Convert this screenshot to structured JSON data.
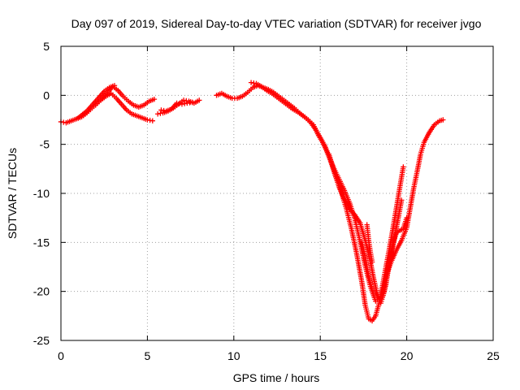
{
  "chart_data": {
    "type": "scatter",
    "title": "Day 097 of 2019, Sidereal Day-to-day VTEC variation (SDTVAR) for receiver jvgo",
    "xlabel": "GPS time / hours",
    "ylabel": "SDTVAR / TECUs",
    "xlim": [
      0,
      25
    ],
    "ylim": [
      -25,
      5
    ],
    "xticks": [
      "0",
      "5",
      "10",
      "15",
      "20",
      "25"
    ],
    "yticks": [
      "5",
      "0",
      "-5",
      "-10",
      "-15",
      "-20",
      "-25"
    ],
    "grid": true,
    "marker": "plus",
    "color": "#ff0000",
    "series": [
      {
        "points": [
          [
            0.0,
            -2.7
          ],
          [
            0.3,
            -2.8
          ],
          [
            0.6,
            -2.6
          ],
          [
            0.9,
            -2.4
          ],
          [
            1.2,
            -2.2
          ],
          [
            1.5,
            -1.8
          ],
          [
            1.8,
            -1.3
          ],
          [
            2.1,
            -0.8
          ],
          [
            2.4,
            -0.3
          ],
          [
            2.7,
            0.3
          ],
          [
            3.0,
            0.9
          ],
          [
            3.3,
            0.5
          ],
          [
            3.6,
            -0.1
          ],
          [
            3.9,
            -0.6
          ],
          [
            4.2,
            -1.0
          ],
          [
            4.5,
            -1.2
          ],
          [
            4.8,
            -1.0
          ],
          [
            5.1,
            -0.6
          ],
          [
            5.4,
            -0.4
          ],
          [
            2.0,
            -1.0
          ],
          [
            2.3,
            -0.5
          ],
          [
            2.6,
            -0.1
          ],
          [
            2.9,
            0.2
          ],
          [
            3.2,
            -0.3
          ],
          [
            3.5,
            -0.9
          ],
          [
            3.8,
            -1.5
          ],
          [
            4.1,
            -1.9
          ],
          [
            4.4,
            -2.1
          ],
          [
            4.7,
            -2.3
          ],
          [
            5.0,
            -2.5
          ],
          [
            5.3,
            -2.6
          ],
          [
            1.0,
            -2.3
          ],
          [
            1.5,
            -1.6
          ],
          [
            2.0,
            -0.6
          ],
          [
            2.5,
            0.4
          ],
          [
            2.8,
            0.8
          ],
          [
            3.1,
            1.0
          ]
        ]
      },
      {
        "points": [
          [
            5.6,
            -1.9
          ],
          [
            5.9,
            -1.8
          ],
          [
            6.2,
            -1.6
          ],
          [
            6.5,
            -1.3
          ],
          [
            6.8,
            -0.9
          ],
          [
            7.1,
            -0.5
          ],
          [
            7.4,
            -0.6
          ],
          [
            7.7,
            -0.8
          ],
          [
            8.0,
            -0.5
          ],
          [
            5.8,
            -1.5
          ],
          [
            6.1,
            -1.6
          ],
          [
            6.4,
            -1.4
          ],
          [
            6.7,
            -0.8
          ],
          [
            7.0,
            -0.9
          ],
          [
            7.3,
            -0.8
          ],
          [
            7.6,
            -0.7
          ]
        ]
      },
      {
        "points": [
          [
            9.0,
            0.0
          ],
          [
            9.3,
            0.2
          ],
          [
            9.6,
            -0.1
          ],
          [
            9.9,
            -0.3
          ],
          [
            10.2,
            -0.3
          ],
          [
            10.5,
            -0.1
          ],
          [
            10.8,
            0.3
          ],
          [
            11.1,
            0.8
          ],
          [
            11.4,
            1.0
          ],
          [
            11.7,
            0.8
          ],
          [
            12.0,
            0.6
          ],
          [
            12.3,
            0.3
          ],
          [
            12.6,
            -0.1
          ],
          [
            12.9,
            -0.5
          ],
          [
            13.2,
            -0.9
          ],
          [
            13.5,
            -1.3
          ],
          [
            13.8,
            -1.8
          ],
          [
            14.1,
            -2.2
          ],
          [
            14.4,
            -2.7
          ],
          [
            14.7,
            -3.4
          ],
          [
            15.0,
            -4.3
          ],
          [
            15.3,
            -5.3
          ],
          [
            15.6,
            -6.7
          ],
          [
            15.9,
            -8.3
          ],
          [
            16.2,
            -9.8
          ],
          [
            16.5,
            -11.5
          ],
          [
            16.8,
            -13.6
          ],
          [
            17.1,
            -16.1
          ],
          [
            17.4,
            -19.0
          ],
          [
            17.6,
            -21.4
          ],
          [
            17.8,
            -22.8
          ],
          [
            18.0,
            -23.0
          ],
          [
            18.2,
            -22.5
          ],
          [
            18.4,
            -21.2
          ],
          [
            18.6,
            -19.4
          ],
          [
            18.8,
            -17.5
          ],
          [
            19.0,
            -15.6
          ],
          [
            19.2,
            -13.6
          ],
          [
            19.4,
            -11.5
          ],
          [
            19.6,
            -9.4
          ],
          [
            19.8,
            -7.3
          ],
          [
            11.0,
            1.3
          ],
          [
            11.3,
            1.2
          ],
          [
            11.6,
            0.9
          ],
          [
            11.9,
            0.5
          ],
          [
            12.2,
            0.2
          ],
          [
            12.5,
            -0.2
          ],
          [
            12.8,
            -0.6
          ],
          [
            13.1,
            -1.0
          ],
          [
            13.4,
            -1.4
          ],
          [
            13.7,
            -1.7
          ],
          [
            14.0,
            -2.1
          ],
          [
            14.3,
            -2.5
          ],
          [
            14.6,
            -3.0
          ],
          [
            14.9,
            -4.1
          ],
          [
            15.2,
            -5.0
          ],
          [
            15.5,
            -6.2
          ],
          [
            15.8,
            -7.5
          ],
          [
            16.1,
            -8.6
          ],
          [
            16.4,
            -9.7
          ],
          [
            16.7,
            -11.0
          ],
          [
            17.0,
            -12.6
          ],
          [
            17.3,
            -14.9
          ],
          [
            17.6,
            -17.4
          ],
          [
            17.9,
            -19.5
          ],
          [
            18.2,
            -21.0
          ],
          [
            18.5,
            -20.5
          ],
          [
            18.8,
            -18.5
          ],
          [
            19.1,
            -17.0
          ],
          [
            19.4,
            -15.8
          ],
          [
            19.7,
            -14.8
          ],
          [
            20.0,
            -13.5
          ],
          [
            20.2,
            -11.5
          ],
          [
            20.4,
            -9.5
          ],
          [
            20.6,
            -7.8
          ],
          [
            20.8,
            -6.0
          ],
          [
            21.0,
            -4.8
          ],
          [
            21.3,
            -3.8
          ],
          [
            21.6,
            -3.0
          ],
          [
            21.9,
            -2.6
          ],
          [
            22.1,
            -2.5
          ],
          [
            15.5,
            -6.0
          ],
          [
            15.8,
            -7.8
          ],
          [
            16.1,
            -9.4
          ],
          [
            16.4,
            -10.6
          ],
          [
            16.7,
            -11.6
          ],
          [
            17.0,
            -12.2
          ],
          [
            17.3,
            -13.0
          ],
          [
            17.6,
            -14.8
          ],
          [
            17.9,
            -17.0
          ],
          [
            18.1,
            -18.8
          ],
          [
            18.3,
            -20.3
          ],
          [
            18.5,
            -21.2
          ],
          [
            18.7,
            -20.0
          ],
          [
            18.9,
            -18.0
          ],
          [
            19.1,
            -16.2
          ],
          [
            19.3,
            -14.5
          ],
          [
            19.5,
            -12.6
          ],
          [
            19.7,
            -10.7
          ],
          [
            17.4,
            -15.0
          ],
          [
            17.6,
            -16.5
          ],
          [
            17.8,
            -18.5
          ],
          [
            18.0,
            -19.7
          ],
          [
            18.2,
            -20.1
          ],
          [
            18.4,
            -20.8
          ],
          [
            18.6,
            -20.6
          ],
          [
            18.8,
            -19.3
          ],
          [
            19.0,
            -17.0
          ],
          [
            19.2,
            -15.2
          ],
          [
            19.4,
            -14.0
          ],
          [
            19.6,
            -13.8
          ],
          [
            19.8,
            -13.6
          ],
          [
            20.0,
            -12.5
          ],
          [
            17.7,
            -13.2
          ],
          [
            17.8,
            -14.8
          ],
          [
            17.9,
            -16.0
          ],
          [
            18.0,
            -17.0
          ]
        ]
      }
    ]
  }
}
